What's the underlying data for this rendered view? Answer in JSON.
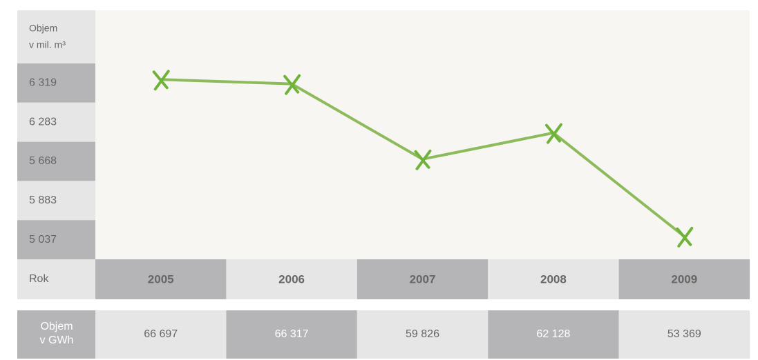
{
  "chart_data": {
    "type": "line",
    "y_label_lines": [
      "Objem",
      "v mil. m³"
    ],
    "x_label": "Rok",
    "categories": [
      "2005",
      "2006",
      "2007",
      "2008",
      "2009"
    ],
    "values": [
      6319,
      6283,
      5668,
      5883,
      5037
    ],
    "value_labels": [
      "6 319",
      "6 283",
      "5 668",
      "5 883",
      "5 037"
    ],
    "color": "#8dba5a",
    "ylim": [
      4850,
      6450
    ]
  },
  "energy_table": {
    "label_lines": [
      "Objem",
      "v GWh"
    ],
    "cells": [
      "66 697",
      "66 317",
      "59 826",
      "62 128",
      "53 369"
    ]
  }
}
